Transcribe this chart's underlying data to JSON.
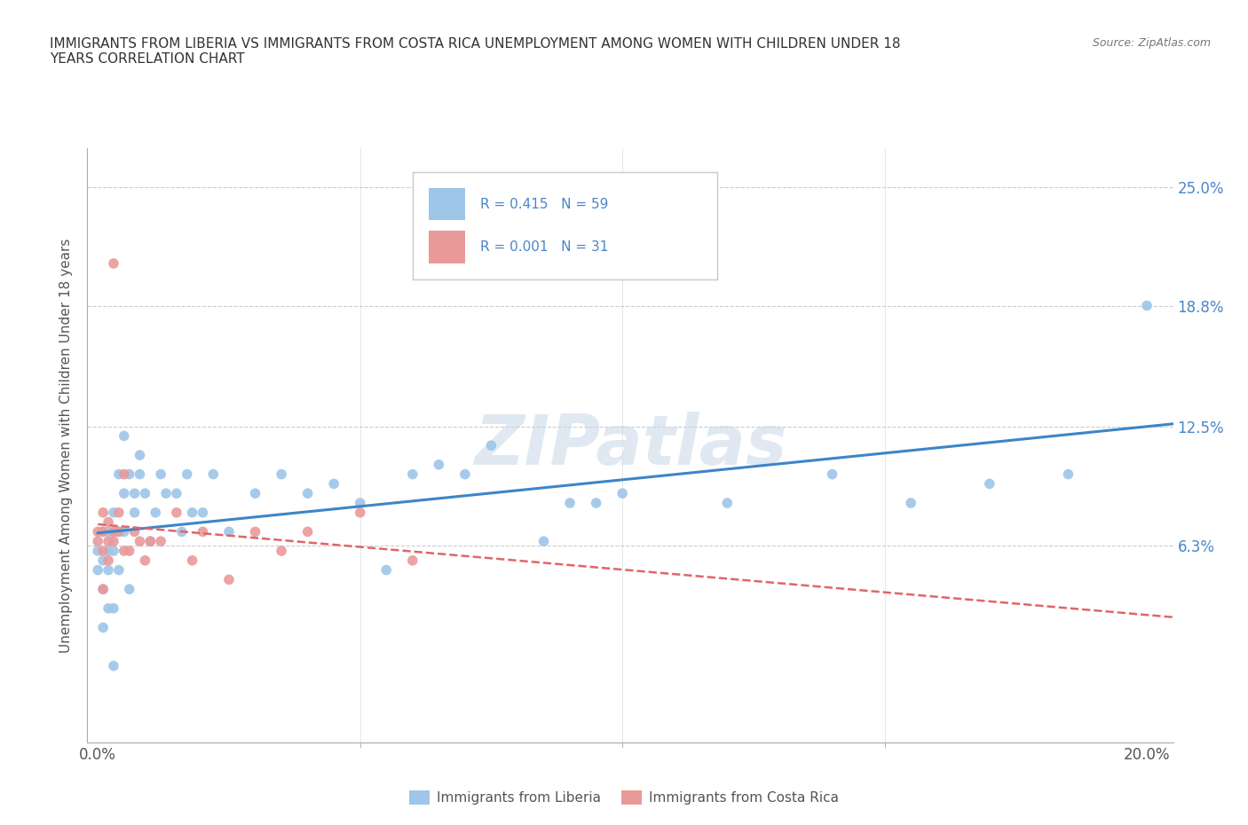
{
  "title": "IMMIGRANTS FROM LIBERIA VS IMMIGRANTS FROM COSTA RICA UNEMPLOYMENT AMONG WOMEN WITH CHILDREN UNDER 18\nYEARS CORRELATION CHART",
  "source": "Source: ZipAtlas.com",
  "ylabel": "Unemployment Among Women with Children Under 18 years",
  "xlim": [
    -0.002,
    0.205
  ],
  "ylim": [
    -0.04,
    0.27
  ],
  "yticks": [
    0.063,
    0.125,
    0.188,
    0.25
  ],
  "ytick_labels": [
    "6.3%",
    "12.5%",
    "18.8%",
    "25.0%"
  ],
  "xticks": [
    0.0,
    0.2
  ],
  "xtick_labels": [
    "0.0%",
    "20.0%"
  ],
  "xticks_minor": [
    0.05,
    0.1,
    0.15
  ],
  "color_liberia": "#9fc5e8",
  "color_costarica": "#ea9999",
  "color_liberia_line": "#3d85c8",
  "color_costarica_line": "#e06666",
  "R_liberia": 0.415,
  "N_liberia": 59,
  "R_costarica": 0.001,
  "N_costarica": 31,
  "legend_label_liberia": "Immigrants from Liberia",
  "legend_label_costarica": "Immigrants from Costa Rica",
  "watermark": "ZIPatlas",
  "liberia_x": [
    0.0,
    0.0,
    0.001,
    0.001,
    0.001,
    0.001,
    0.002,
    0.002,
    0.002,
    0.002,
    0.003,
    0.003,
    0.003,
    0.003,
    0.003,
    0.004,
    0.004,
    0.004,
    0.005,
    0.005,
    0.005,
    0.006,
    0.006,
    0.007,
    0.007,
    0.008,
    0.008,
    0.009,
    0.01,
    0.011,
    0.012,
    0.013,
    0.015,
    0.016,
    0.017,
    0.018,
    0.02,
    0.022,
    0.025,
    0.03,
    0.035,
    0.04,
    0.045,
    0.05,
    0.055,
    0.06,
    0.065,
    0.07,
    0.075,
    0.085,
    0.09,
    0.095,
    0.1,
    0.12,
    0.14,
    0.155,
    0.17,
    0.185,
    0.2
  ],
  "liberia_y": [
    0.06,
    0.05,
    0.04,
    0.055,
    0.07,
    0.02,
    0.03,
    0.06,
    0.07,
    0.05,
    0.0,
    0.03,
    0.06,
    0.07,
    0.08,
    0.05,
    0.07,
    0.1,
    0.07,
    0.09,
    0.12,
    0.04,
    0.1,
    0.08,
    0.09,
    0.1,
    0.11,
    0.09,
    0.065,
    0.08,
    0.1,
    0.09,
    0.09,
    0.07,
    0.1,
    0.08,
    0.08,
    0.1,
    0.07,
    0.09,
    0.1,
    0.09,
    0.095,
    0.085,
    0.05,
    0.1,
    0.105,
    0.1,
    0.115,
    0.065,
    0.085,
    0.085,
    0.09,
    0.085,
    0.1,
    0.085,
    0.095,
    0.1,
    0.188
  ],
  "costarica_x": [
    0.0,
    0.0,
    0.001,
    0.001,
    0.001,
    0.001,
    0.002,
    0.002,
    0.002,
    0.003,
    0.003,
    0.003,
    0.004,
    0.004,
    0.005,
    0.005,
    0.006,
    0.007,
    0.008,
    0.009,
    0.01,
    0.012,
    0.015,
    0.018,
    0.02,
    0.025,
    0.03,
    0.035,
    0.04,
    0.05,
    0.06
  ],
  "costarica_y": [
    0.065,
    0.07,
    0.04,
    0.06,
    0.07,
    0.08,
    0.055,
    0.065,
    0.075,
    0.065,
    0.07,
    0.21,
    0.07,
    0.08,
    0.06,
    0.1,
    0.06,
    0.07,
    0.065,
    0.055,
    0.065,
    0.065,
    0.08,
    0.055,
    0.07,
    0.045,
    0.07,
    0.06,
    0.07,
    0.08,
    0.055
  ]
}
